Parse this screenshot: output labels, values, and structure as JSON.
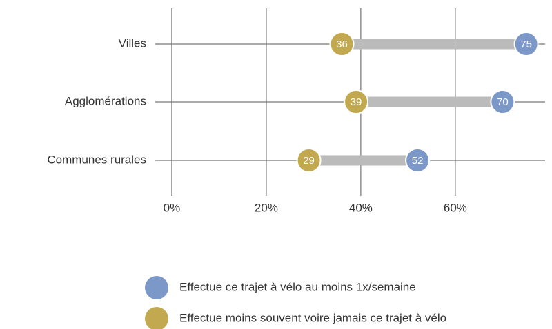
{
  "chart_data": {
    "type": "dumbbell",
    "categories": [
      "Villes",
      "Agglomérations",
      "Communes rurales"
    ],
    "series": [
      {
        "name": "Effectue ce trajet à vélo au moins 1x/semaine",
        "color": "#7b98c8",
        "values": [
          75,
          70,
          52
        ]
      },
      {
        "name": "Effectue moins souvent voire jamais ce trajet à vélo",
        "color": "#c2a84e",
        "values": [
          36,
          39,
          29
        ]
      }
    ],
    "xlim": [
      -3.5,
      79
    ],
    "xticks": [
      {
        "value": 0,
        "label": "0%"
      },
      {
        "value": 20,
        "label": "20%"
      },
      {
        "value": 40,
        "label": "40%"
      },
      {
        "value": 60,
        "label": "60%"
      }
    ],
    "grid": true,
    "connector_color": "#bbbbbb"
  }
}
